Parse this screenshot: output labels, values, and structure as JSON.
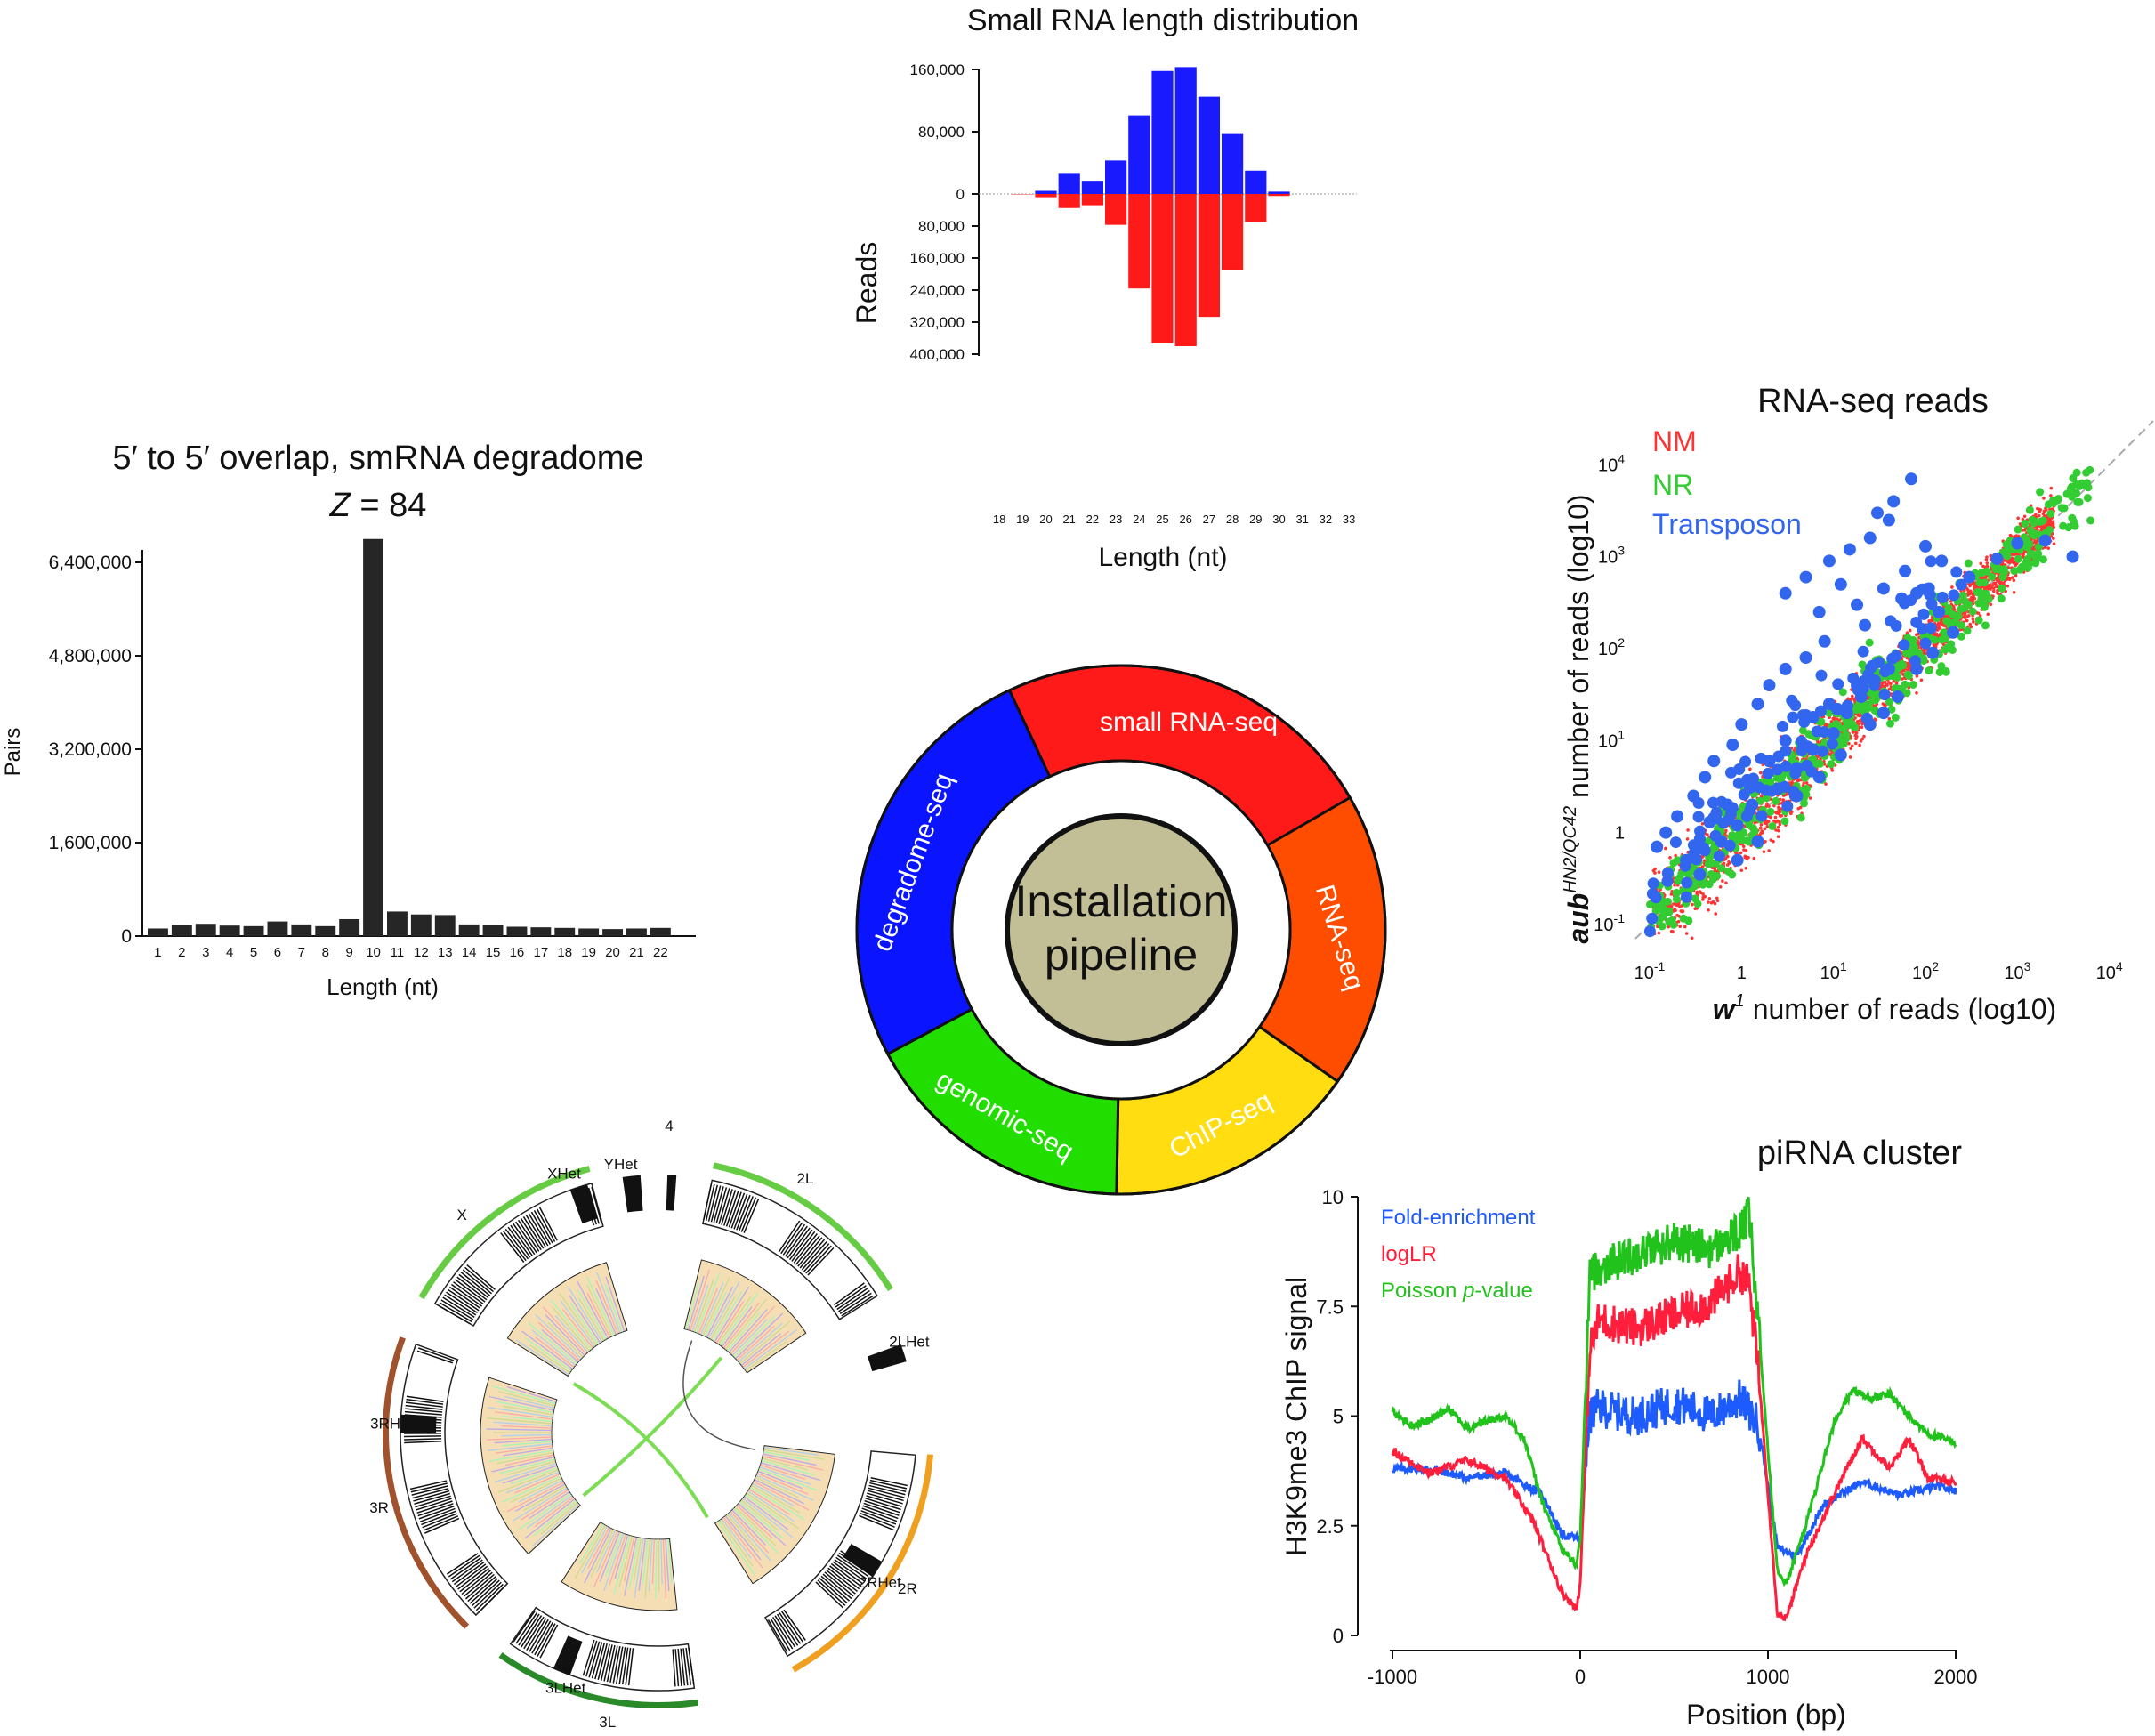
{
  "colors": {
    "red": "#ff1a1a",
    "blue": "#1a1aff",
    "dark_bar": "#262626",
    "nm": "#ff3333",
    "nr": "#33cc33",
    "transposon": "#3366ee",
    "fold": "#1e5bff",
    "loglr": "#ff1e3c",
    "poisson": "#22c21c",
    "ring_small_rna": "#ff1a1a",
    "ring_rna": "#ff4d00",
    "ring_chip": "#ffdd11",
    "ring_genomic": "#22dd00",
    "ring_degradome": "#0a14ff",
    "ring_center": "#c2bf97",
    "circos_band": "#f5deb3",
    "circos_green": "#66cc44",
    "circos_brown": "#a0522d",
    "circos_orange": "#f0a020"
  },
  "chart_data": [
    {
      "type": "bar",
      "title": "Small RNA length distribution",
      "xlabel": "Length (nt)",
      "ylabel": "Reads",
      "categories": [
        "18",
        "19",
        "20",
        "21",
        "22",
        "23",
        "24",
        "25",
        "26",
        "27",
        "28",
        "29",
        "30",
        "31",
        "32",
        "33"
      ],
      "series": [
        {
          "values": [
            0,
            0,
            4000,
            27000,
            17000,
            43000,
            101000,
            158000,
            163000,
            125000,
            77000,
            30000,
            3000,
            0,
            0,
            0
          ]
        },
        {
          "values": [
            0,
            1000,
            8000,
            35000,
            28000,
            77000,
            236000,
            373000,
            380000,
            307000,
            191000,
            70000,
            5000,
            0,
            0,
            0
          ]
        }
      ],
      "positive_ylim": [
        0,
        160000
      ],
      "negative_ylim": [
        0,
        400000
      ],
      "yticks_positive": [
        "160,000",
        "80,000",
        "0"
      ],
      "yticks_negative": [
        "80,000",
        "160,000",
        "240,000",
        "320,000",
        "400,000"
      ]
    },
    {
      "type": "bar",
      "title": "5′ to 5′ overlap, smRNA degradome",
      "subtitle_var": "Z",
      "subtitle_eq": " = 84",
      "xlabel": "Length (nt)",
      "ylabel": "Pairs",
      "categories": [
        "1",
        "2",
        "3",
        "4",
        "5",
        "6",
        "7",
        "8",
        "9",
        "10",
        "11",
        "12",
        "13",
        "14",
        "15",
        "16",
        "17",
        "18",
        "19",
        "20",
        "21",
        "22"
      ],
      "values": [
        130000,
        190000,
        210000,
        180000,
        170000,
        250000,
        200000,
        170000,
        290000,
        6800000,
        420000,
        370000,
        360000,
        200000,
        190000,
        160000,
        150000,
        140000,
        130000,
        120000,
        130000,
        140000
      ],
      "ylim": [
        0,
        6400000
      ],
      "yticks": [
        "0",
        "1,600,000",
        "3,200,000",
        "4,800,000",
        "6,400,000"
      ]
    },
    {
      "type": "scatter",
      "title": "RNA-seq reads",
      "xlabel_var": "w",
      "xlabel_sup": "1",
      "xlabel_rest": " number of reads (log10)",
      "ylabel_var": "aub",
      "ylabel_sup": "HN2/QC42",
      "ylabel_rest": " number of reads (log10)",
      "xscale": "log",
      "yscale": "log",
      "xlim": [
        0.07,
        30000
      ],
      "ylim": [
        0.07,
        30000
      ],
      "xticks": [
        "10-1",
        "1",
        "101",
        "102",
        "103",
        "104"
      ],
      "yticks": [
        "10-1",
        "1",
        "101",
        "102",
        "103",
        "104"
      ],
      "legend": [
        "NM",
        "NR",
        "Transposon"
      ],
      "series": [
        {
          "name": "NM",
          "note_points": "dense cloud along diagonal"
        },
        {
          "name": "NR"
        },
        {
          "name": "Transposon",
          "points": [
            [
              30,
              3000
            ],
            [
              45,
              4000
            ],
            [
              70,
              7000
            ],
            [
              15,
              1200
            ],
            [
              25,
              1600
            ],
            [
              40,
              2500
            ],
            [
              9,
              900
            ],
            [
              5,
              600
            ],
            [
              3,
              400
            ],
            [
              7,
              250
            ],
            [
              12,
              500
            ],
            [
              18,
              300
            ],
            [
              22,
              180
            ],
            [
              35,
              450
            ],
            [
              60,
              700
            ],
            [
              100,
              1300
            ],
            [
              150,
              900
            ],
            [
              300,
              600
            ],
            [
              2000,
              1500
            ],
            [
              4000,
              1000
            ],
            [
              1000,
              1400
            ],
            [
              600,
              950
            ],
            [
              55,
              350
            ],
            [
              80,
              400
            ],
            [
              140,
              250
            ],
            [
              8,
              120
            ],
            [
              5,
              80
            ],
            [
              3,
              60
            ],
            [
              2,
              40
            ],
            [
              1.5,
              25
            ],
            [
              1,
              15
            ],
            [
              0.8,
              9
            ],
            [
              0.5,
              6
            ],
            [
              0.4,
              4
            ],
            [
              0.3,
              2.5
            ],
            [
              0.2,
              1.5
            ],
            [
              0.15,
              1
            ],
            [
              0.12,
              0.7
            ],
            [
              0.25,
              0.5
            ],
            [
              0.35,
              0.35
            ],
            [
              0.6,
              0.8
            ],
            [
              0.9,
              1.2
            ],
            [
              1.3,
              2
            ],
            [
              2.5,
              3
            ],
            [
              4,
              5
            ],
            [
              6,
              8
            ],
            [
              10,
              12
            ],
            [
              14,
              20
            ],
            [
              20,
              30
            ],
            [
              28,
              45
            ],
            [
              40,
              60
            ],
            [
              3,
              10
            ],
            [
              6,
              18
            ],
            [
              9,
              25
            ],
            [
              2,
              6
            ],
            [
              1.2,
              3.5
            ],
            [
              0.7,
              2
            ],
            [
              0.45,
              1.3
            ],
            [
              25,
              15
            ],
            [
              12,
              7
            ],
            [
              7,
              4
            ],
            [
              4,
              2.5
            ],
            [
              50,
              30
            ],
            [
              80,
              60
            ],
            [
              120,
              90
            ],
            [
              200,
              150
            ],
            [
              35,
              20
            ],
            [
              1.5,
              0.8
            ],
            [
              0.9,
              0.5
            ],
            [
              18,
              40
            ],
            [
              11,
              22
            ]
          ]
        }
      ]
    },
    {
      "type": "line",
      "title": "piRNA cluster",
      "xlabel": "Position (bp)",
      "ylabel": "H3K9me3 ChIP signal",
      "xlim": [
        -1000,
        2000
      ],
      "ylim": [
        0,
        10
      ],
      "xticks": [
        "-1000",
        "0",
        "1000",
        "2000"
      ],
      "yticks": [
        "0",
        "2.5",
        "5",
        "7.5",
        "10"
      ],
      "legend_fold": "Fold-enrichment",
      "legend_loglr": "logLR",
      "legend_poisson_pre": "Poisson ",
      "legend_poisson_var": "p",
      "legend_poisson_post": "-value",
      "series": [
        {
          "name": "Fold-enrichment",
          "x": [
            -1000,
            -800,
            -600,
            -400,
            -200,
            -100,
            0,
            50,
            100,
            300,
            500,
            700,
            850,
            950,
            1050,
            1150,
            1300,
            1500,
            1700,
            1900,
            2000
          ],
          "y": [
            3.8,
            3.8,
            3.6,
            3.7,
            3.2,
            2.3,
            2.2,
            5.0,
            5.2,
            5.0,
            5.3,
            5.0,
            5.4,
            4.8,
            2.0,
            1.8,
            3.0,
            3.5,
            3.2,
            3.4,
            3.3
          ]
        },
        {
          "name": "logLR",
          "x": [
            -1000,
            -800,
            -600,
            -400,
            -250,
            -100,
            -20,
            0,
            50,
            100,
            300,
            500,
            700,
            850,
            900,
            950,
            1050,
            1100,
            1200,
            1350,
            1500,
            1650,
            1750,
            1850,
            2000
          ],
          "y": [
            4.2,
            3.7,
            4.0,
            3.6,
            2.6,
            1.0,
            0.6,
            1.2,
            6.5,
            7.2,
            7.0,
            7.3,
            7.6,
            8.3,
            8.0,
            6.0,
            0.5,
            0.4,
            1.8,
            3.2,
            4.5,
            3.8,
            4.5,
            3.6,
            3.5
          ]
        },
        {
          "name": "Poisson p-value",
          "x": [
            -1000,
            -900,
            -800,
            -700,
            -600,
            -500,
            -400,
            -300,
            -200,
            -100,
            -20,
            0,
            50,
            100,
            300,
            500,
            700,
            850,
            900,
            950,
            1050,
            1100,
            1200,
            1350,
            1450,
            1550,
            1650,
            1750,
            1850,
            2000
          ],
          "y": [
            5.1,
            4.8,
            4.9,
            5.2,
            4.7,
            4.9,
            5.0,
            4.5,
            3.0,
            2.0,
            1.6,
            2.2,
            8.2,
            8.4,
            8.7,
            9.0,
            8.8,
            9.2,
            9.6,
            7.0,
            1.5,
            1.2,
            2.5,
            4.8,
            5.6,
            5.4,
            5.5,
            5.0,
            4.6,
            4.4
          ]
        }
      ]
    },
    {
      "type": "diagram",
      "center_line1": "Installation",
      "center_line2": "pipeline",
      "segments": [
        "small RNA-seq",
        "RNA-seq",
        "ChIP-seq",
        "genomic-seq",
        "degradome-seq"
      ]
    },
    {
      "type": "diagram",
      "arms": [
        "4",
        "2L",
        "2LHet",
        "2R",
        "2RHet",
        "3L",
        "3LHet",
        "3R",
        "3RHet",
        "X",
        "XHet",
        "YHet"
      ]
    }
  ]
}
